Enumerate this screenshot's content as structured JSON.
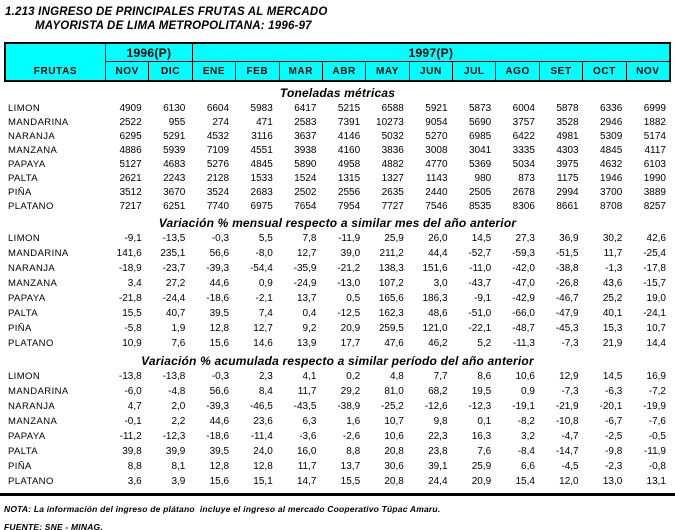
{
  "title": {
    "line1": "1.213  INGRESO DE PRINCIPALES FRUTAS AL MERCADO",
    "line2": "MAYORISTA DE LIMA METROPOLITANA: 1996-97"
  },
  "colors": {
    "header_bg": "#00FFFF",
    "border": "#000000"
  },
  "header": {
    "frutas_label": "FRUTAS",
    "year_groups": [
      {
        "label": "1996(P)",
        "span": 2
      },
      {
        "label": "1997(P)",
        "span": 11
      }
    ],
    "months": [
      "NOV",
      "DIC",
      "ENE",
      "FEB",
      "MAR",
      "ABR",
      "MAY",
      "JUN",
      "JUL",
      "AGO",
      "SET",
      "OCT",
      "NOV"
    ]
  },
  "sections": [
    {
      "title": "Toneladas métricas",
      "rows": [
        {
          "fruit": "LIMON",
          "values": [
            "4909",
            "6130",
            "6604",
            "5983",
            "6417",
            "5215",
            "6588",
            "5921",
            "5873",
            "6004",
            "5878",
            "6336",
            "6999"
          ]
        },
        {
          "fruit": "MANDARINA",
          "values": [
            "2522",
            "955",
            "274",
            "471",
            "2583",
            "7391",
            "10273",
            "9054",
            "5690",
            "3757",
            "3528",
            "2946",
            "1882"
          ]
        },
        {
          "fruit": "NARANJA",
          "values": [
            "6295",
            "5291",
            "4532",
            "3116",
            "3637",
            "4146",
            "5032",
            "5270",
            "6985",
            "6422",
            "4981",
            "5309",
            "5174"
          ]
        },
        {
          "fruit": "MANZANA",
          "values": [
            "4886",
            "5939",
            "7109",
            "4551",
            "3938",
            "4160",
            "3836",
            "3008",
            "3041",
            "3335",
            "4303",
            "4845",
            "4117"
          ]
        },
        {
          "fruit": "PAPAYA",
          "values": [
            "5127",
            "4683",
            "5276",
            "4845",
            "5890",
            "4958",
            "4882",
            "4770",
            "5369",
            "5034",
            "3975",
            "4632",
            "6103"
          ]
        },
        {
          "fruit": "PALTA",
          "values": [
            "2621",
            "2243",
            "2128",
            "1533",
            "1524",
            "1315",
            "1327",
            "1143",
            "980",
            "873",
            "1175",
            "1946",
            "1990"
          ]
        },
        {
          "fruit": "PIÑA",
          "values": [
            "3512",
            "3670",
            "3524",
            "2683",
            "2502",
            "2556",
            "2635",
            "2440",
            "2505",
            "2678",
            "2994",
            "3700",
            "3889"
          ]
        },
        {
          "fruit": "PLATANO",
          "values": [
            "7217",
            "6251",
            "7740",
            "6975",
            "7654",
            "7954",
            "7727",
            "7546",
            "8535",
            "8306",
            "8661",
            "8708",
            "8257"
          ]
        }
      ]
    },
    {
      "title": "Variación % mensual respecto a similar mes del año anterior",
      "rows": [
        {
          "fruit": "LIMON",
          "values": [
            "-9,1",
            "-13,5",
            "-0,3",
            "5,5",
            "7,8",
            "-11,9",
            "25,9",
            "26,0",
            "14,5",
            "27,3",
            "36,9",
            "30,2",
            "42,6"
          ]
        },
        {
          "fruit": "MANDARINA",
          "values": [
            "141,6",
            "235,1",
            "56,6",
            "-8,0",
            "12,7",
            "39,0",
            "211,2",
            "44,4",
            "-52,7",
            "-59,3",
            "-51,5",
            "11,7",
            "-25,4"
          ]
        },
        {
          "fruit": "NARANJA",
          "values": [
            "-18,9",
            "-23,7",
            "-39,3",
            "-54,4",
            "-35,9",
            "-21,2",
            "138,3",
            "151,6",
            "-11,0",
            "-42,0",
            "-38,8",
            "-1,3",
            "-17,8"
          ]
        },
        {
          "fruit": "MANZANA",
          "values": [
            "3,4",
            "27,2",
            "44,6",
            "0,9",
            "-24,9",
            "-13,0",
            "107,2",
            "3,0",
            "-43,7",
            "-47,0",
            "-26,8",
            "43,6",
            "-15,7"
          ]
        },
        {
          "fruit": "PAPAYA",
          "values": [
            "-21,8",
            "-24,4",
            "-18,6",
            "-2,1",
            "13,7",
            "0,5",
            "165,6",
            "186,3",
            "-9,1",
            "-42,9",
            "-46,7",
            "25,2",
            "19,0"
          ]
        },
        {
          "fruit": "PALTA",
          "values": [
            "15,5",
            "40,7",
            "39,5",
            "7,4",
            "0,4",
            "-12,5",
            "162,3",
            "48,6",
            "-51,0",
            "-66,0",
            "-47,9",
            "40,1",
            "-24,1"
          ]
        },
        {
          "fruit": "PIÑA",
          "values": [
            "-5,8",
            "1,9",
            "12,8",
            "12,7",
            "9,2",
            "20,9",
            "259,5",
            "121,0",
            "-22,1",
            "-48,7",
            "-45,3",
            "15,3",
            "10,7"
          ]
        },
        {
          "fruit": "PLATANO",
          "values": [
            "10,9",
            "7,6",
            "15,6",
            "14,6",
            "13,9",
            "17,7",
            "47,6",
            "46,2",
            "5,2",
            "-11,3",
            "-7,3",
            "21,9",
            "14,4"
          ]
        }
      ]
    },
    {
      "title": "Variación % acumulada respecto a similar período del año anterior",
      "rows": [
        {
          "fruit": "LIMON",
          "values": [
            "-13,8",
            "-13,8",
            "-0,3",
            "2,3",
            "4,1",
            "0,2",
            "4,8",
            "7,7",
            "8,6",
            "10,6",
            "12,9",
            "14,5",
            "16,9"
          ]
        },
        {
          "fruit": "MANDARINA",
          "values": [
            "-6,0",
            "-4,8",
            "56,6",
            "8,4",
            "11,7",
            "29,2",
            "81,0",
            "68,2",
            "19,5",
            "0,9",
            "-7,3",
            "-6,3",
            "-7,2"
          ]
        },
        {
          "fruit": "NARANJA",
          "values": [
            "4,7",
            "2,0",
            "-39,3",
            "-46,5",
            "-43,5",
            "-38,9",
            "-25,2",
            "-12,6",
            "-12,3",
            "-19,1",
            "-21,9",
            "-20,1",
            "-19,9"
          ]
        },
        {
          "fruit": "MANZANA",
          "values": [
            "-0,1",
            "2,2",
            "44,6",
            "23,6",
            "6,3",
            "1,6",
            "10,7",
            "9,8",
            "0,1",
            "-8,2",
            "-10,8",
            "-6,7",
            "-7,6"
          ]
        },
        {
          "fruit": "PAPAYA",
          "values": [
            "-11,2",
            "-12,3",
            "-18,6",
            "-11,4",
            "-3,6",
            "-2,6",
            "10,6",
            "22,3",
            "16,3",
            "3,2",
            "-4,7",
            "-2,5",
            "-0,5"
          ]
        },
        {
          "fruit": "PALTA",
          "values": [
            "39,8",
            "39,9",
            "39,5",
            "24,0",
            "16,0",
            "8,8",
            "20,8",
            "23,8",
            "7,6",
            "-8,4",
            "-14,7",
            "-9,8",
            "-11,9"
          ]
        },
        {
          "fruit": "PIÑA",
          "values": [
            "8,8",
            "8,1",
            "12,8",
            "12,8",
            "11,7",
            "13,7",
            "30,6",
            "39,1",
            "25,9",
            "6,6",
            "-4,5",
            "-2,3",
            "-0,8"
          ]
        },
        {
          "fruit": "PLATANO",
          "values": [
            "3,6",
            "3,9",
            "15,6",
            "15,1",
            "14,7",
            "15,5",
            "20,8",
            "24,4",
            "20,9",
            "15,4",
            "12,0",
            "13,0",
            "13,1"
          ]
        }
      ]
    }
  ],
  "footer": {
    "nota": "NOTA: La información del ingreso de plátano  incluye el ingreso al mercado Cooperativo Túpac Amaru.",
    "fuente": "FUENTE: SNE - MINAG."
  }
}
